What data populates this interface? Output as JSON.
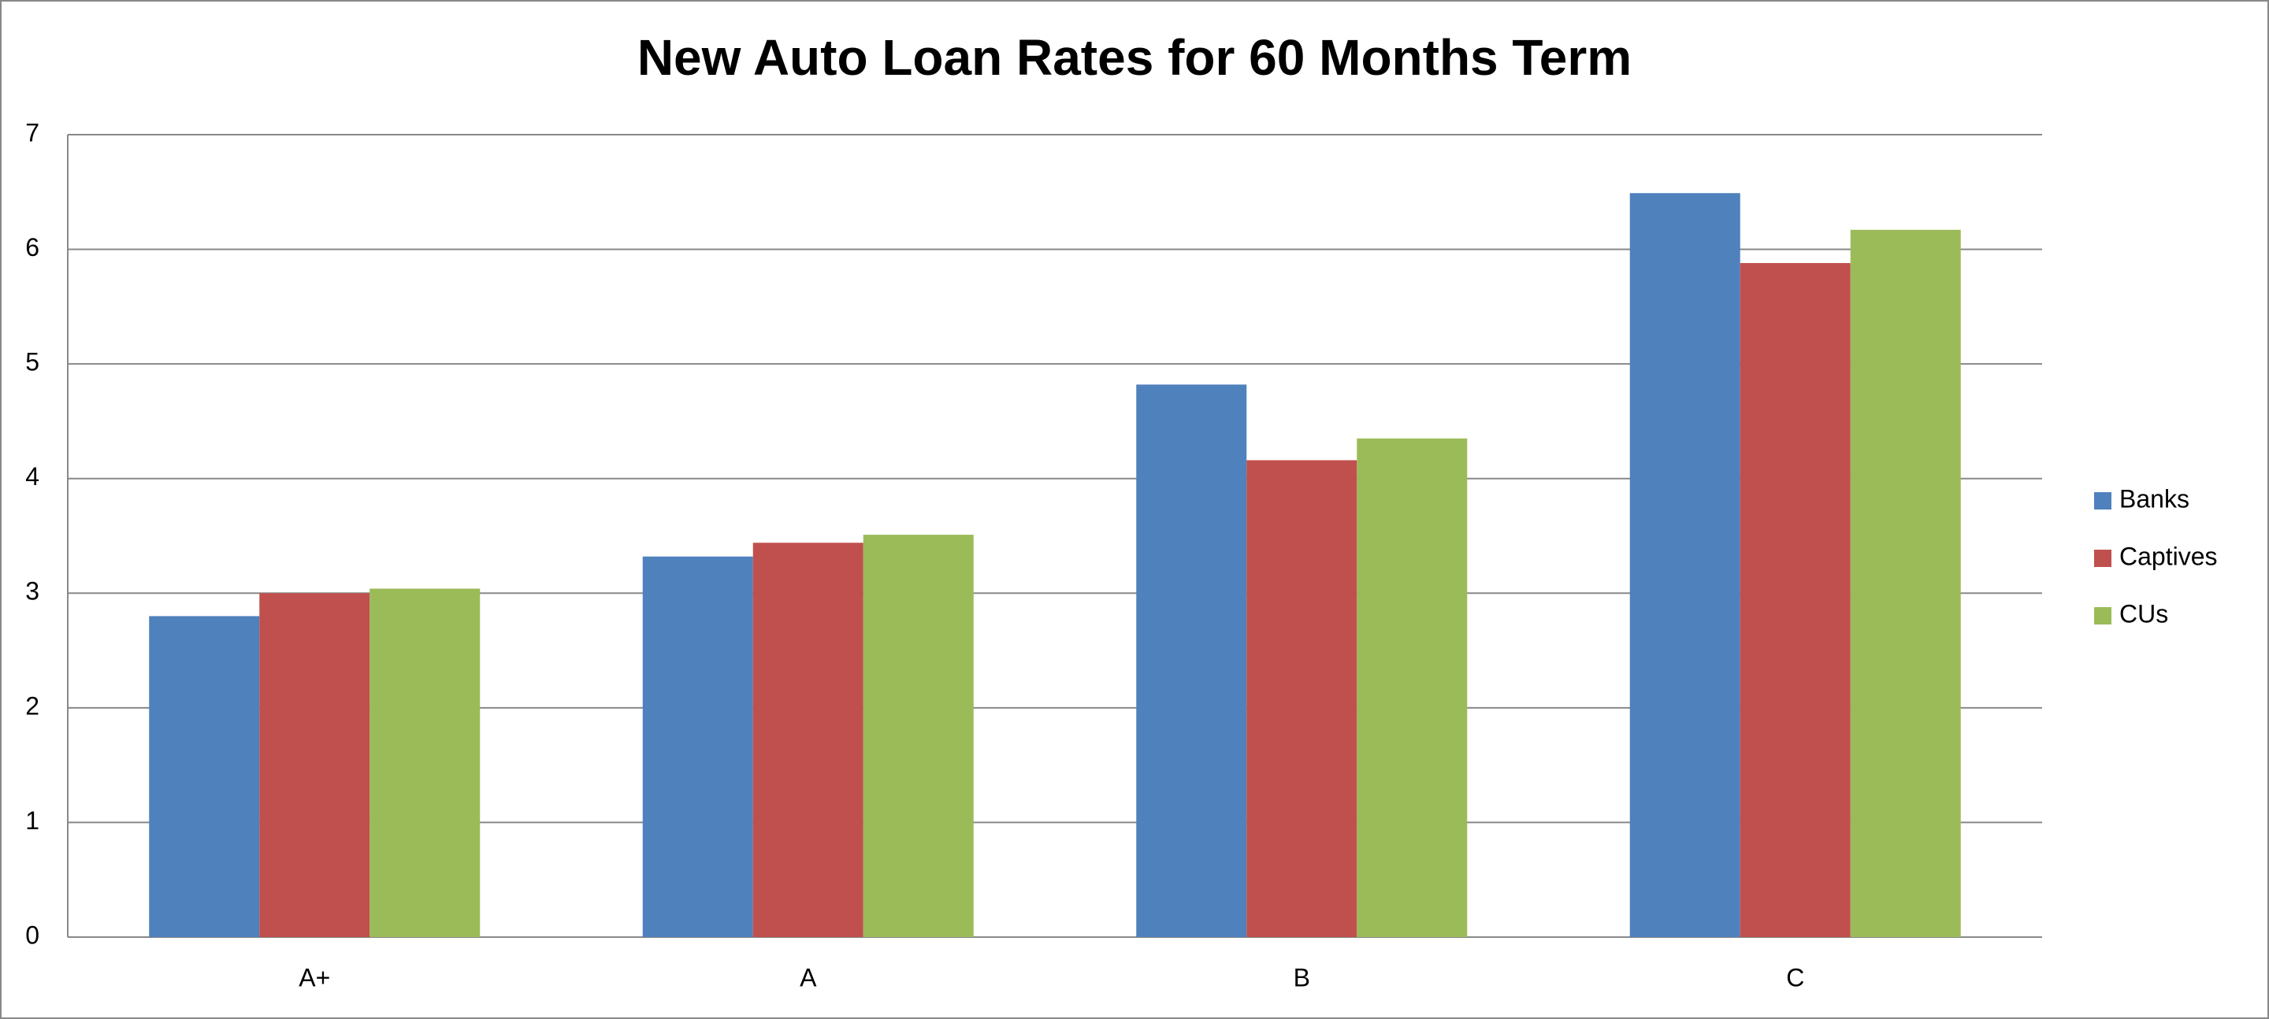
{
  "chart_data": {
    "type": "bar",
    "title": "New Auto Loan Rates for 60 Months Term",
    "categories": [
      "A+",
      "A",
      "B",
      "C"
    ],
    "series": [
      {
        "name": "Banks",
        "color": "#4f81bd",
        "values": [
          2.8,
          3.32,
          4.82,
          6.49
        ]
      },
      {
        "name": "Captives",
        "color": "#c0504d",
        "values": [
          3.0,
          3.44,
          4.16,
          5.88
        ]
      },
      {
        "name": "CUs",
        "color": "#9bbb59",
        "values": [
          3.04,
          3.51,
          4.35,
          6.17
        ]
      }
    ],
    "ylim": [
      0,
      7
    ],
    "yticks": [
      0,
      1,
      2,
      3,
      4,
      5,
      6,
      7
    ],
    "grid": true,
    "legend": "right"
  }
}
